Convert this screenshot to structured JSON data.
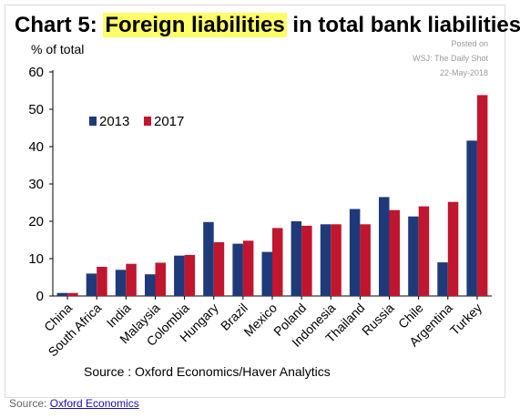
{
  "header": {
    "title_prefix": "Chart 5: ",
    "title_highlight": "Foreign liabilities",
    "title_suffix": " in total bank liabilities",
    "posted_line1": "Posted on",
    "posted_line2": "WSJ: The Daily Shot",
    "posted_line3": "22-May-2018"
  },
  "source_inside": "Source : Oxford Economics/Haver Analytics",
  "caption": {
    "prefix": "Source: ",
    "link": "Oxford Economics"
  },
  "colors": {
    "s2013": "#1f3a7a",
    "s2017": "#c0162e",
    "highlight": "#ffff66"
  },
  "chart_data": {
    "type": "bar",
    "ylabel": "% of total",
    "ylim": [
      0,
      60
    ],
    "yticks": [
      0,
      10,
      20,
      30,
      40,
      50,
      60
    ],
    "grid": false,
    "legend_position": "top-left",
    "categories": [
      "China",
      "South Africa",
      "India",
      "Malaysia",
      "Colombia",
      "Hungary",
      "Brazil",
      "Mexico",
      "Poland",
      "Indonesia",
      "Thailand",
      "Russia",
      "Chile",
      "Argentina",
      "Turkey"
    ],
    "series": [
      {
        "name": "2013",
        "values": [
          0.8,
          6.0,
          7.0,
          5.8,
          10.8,
          19.8,
          14.0,
          11.8,
          20.0,
          19.2,
          23.3,
          26.5,
          21.3,
          9.0,
          41.6
        ]
      },
      {
        "name": "2017",
        "values": [
          0.8,
          7.8,
          8.6,
          8.9,
          11.0,
          14.4,
          14.8,
          18.2,
          18.8,
          19.2,
          19.2,
          23.0,
          24.0,
          25.2,
          53.8
        ]
      }
    ]
  }
}
